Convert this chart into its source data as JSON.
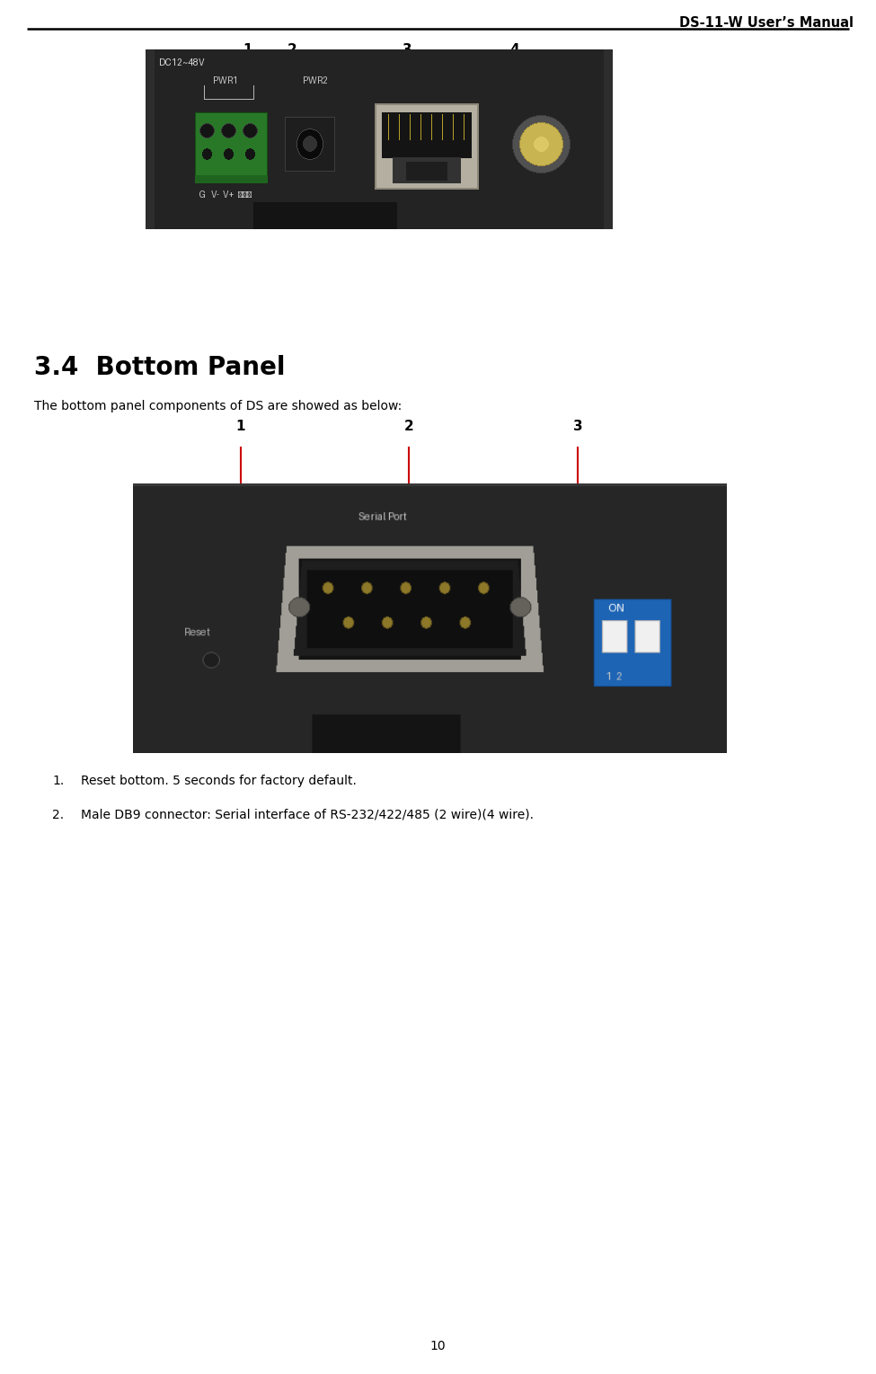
{
  "page_title": "DS-11-W User’s Manual",
  "page_number": "10",
  "section_title": "3.4  Bottom Panel",
  "body_text": "The bottom panel components of DS are showed as below:",
  "list_items": [
    "Reset bottom. 5 seconds for factory default.",
    "Male DB9 connector: Serial interface of RS-232/422/485 (2 wire)(4 wire)."
  ],
  "bg_color": "#ffffff",
  "title_color": "#000000",
  "arrow_color": "#cc0000",
  "fig_width": 9.75,
  "fig_height": 15.29,
  "dpi": 100
}
